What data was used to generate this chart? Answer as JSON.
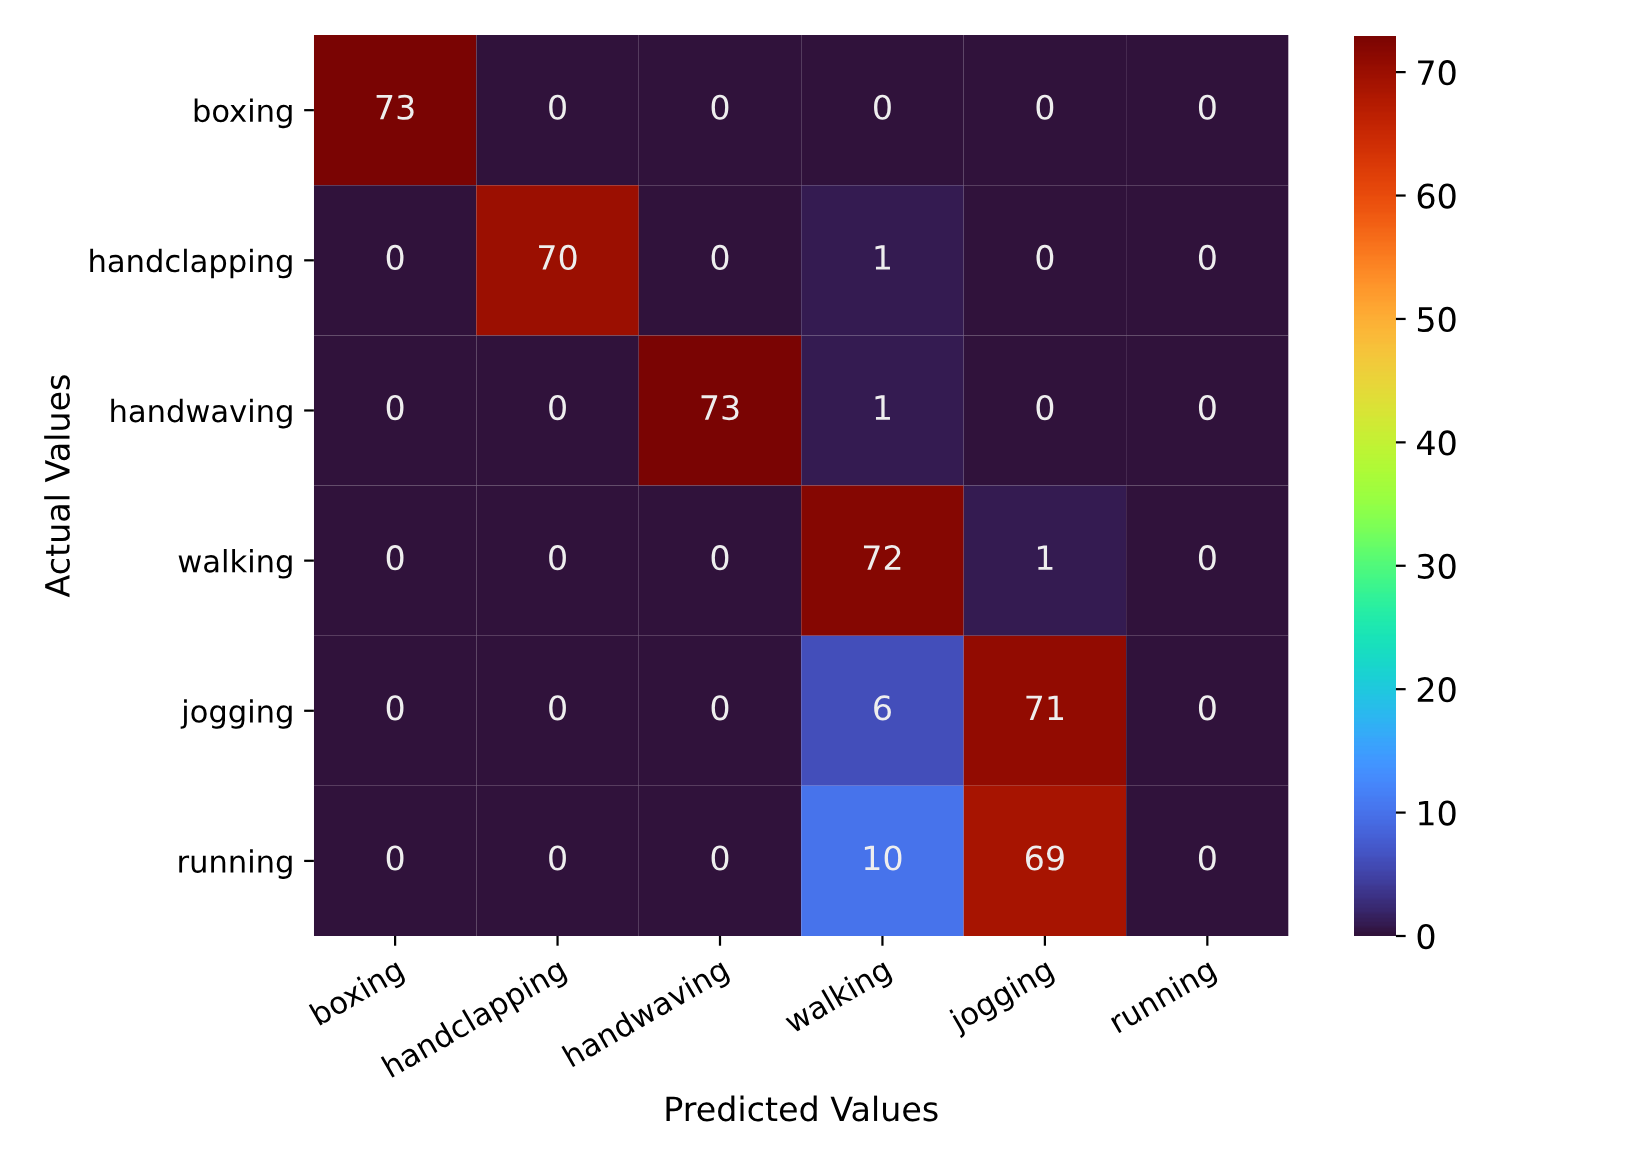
{
  "chart_data": {
    "type": "heatmap",
    "xlabel": "Predicted Values",
    "ylabel": "Actual Values",
    "categories": [
      "boxing",
      "handclapping",
      "handwaving",
      "walking",
      "jogging",
      "running"
    ],
    "y_categories": [
      "boxing",
      "handclapping",
      "handwaving",
      "walking",
      "jogging",
      "running"
    ],
    "cells": [
      [
        73,
        0,
        0,
        0,
        0,
        0
      ],
      [
        0,
        70,
        0,
        1,
        0,
        0
      ],
      [
        0,
        0,
        73,
        1,
        0,
        0
      ],
      [
        0,
        0,
        0,
        72,
        1,
        0
      ],
      [
        0,
        0,
        0,
        6,
        71,
        0
      ],
      [
        0,
        0,
        0,
        10,
        69,
        0
      ]
    ],
    "clim": [
      0,
      73
    ],
    "cticks": [
      0,
      10,
      20,
      30,
      40,
      50,
      60,
      70
    ],
    "data_labels": true
  }
}
